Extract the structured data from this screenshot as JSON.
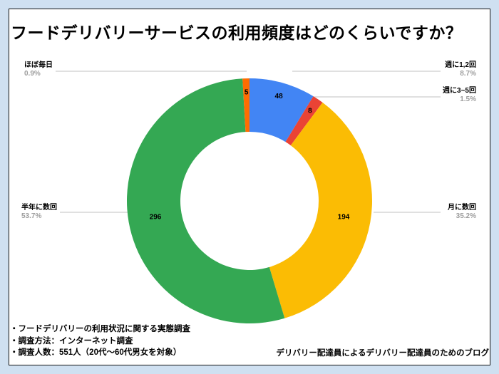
{
  "frame": {
    "background_color": "#cfe0f1",
    "card_color": "#ffffff"
  },
  "title": "フードデリバリーサービスの利用頻度はどのくらいですか？",
  "chart_data": {
    "type": "pie",
    "subtype": "donut",
    "title": "フードデリバリーサービスの利用頻度はどのくらいですか？",
    "total": 551,
    "donut_hole_ratio": 0.56,
    "legend_position": "outside-labeled-with-leader-lines",
    "start_angle_deg": 0,
    "direction": "clockwise",
    "slices": [
      {
        "label": "週に1,2回",
        "value": 48,
        "pct": 8.7,
        "pct_label": "8.7%",
        "color": "#4285f4"
      },
      {
        "label": "週に3~5回",
        "value": 8,
        "pct": 1.5,
        "pct_label": "1.5%",
        "color": "#ea4335"
      },
      {
        "label": "月に数回",
        "value": 194,
        "pct": 35.2,
        "pct_label": "35.2%",
        "color": "#fbbc04"
      },
      {
        "label": "半年に数回",
        "value": 296,
        "pct": 53.7,
        "pct_label": "53.7%",
        "color": "#34a853"
      },
      {
        "label": "ほぼ毎日",
        "value": 5,
        "pct": 0.9,
        "pct_label": "0.9%",
        "color": "#ff6d01"
      }
    ]
  },
  "footnotes": [
    "・フードデリバリーの利用状況に関する実態調査",
    "・調査方法：インターネット調査",
    "・調査人数：551人（20代～60代男女を対象）"
  ],
  "credit": "デリバリー配達員によるデリバリー配達員のためのブログ"
}
